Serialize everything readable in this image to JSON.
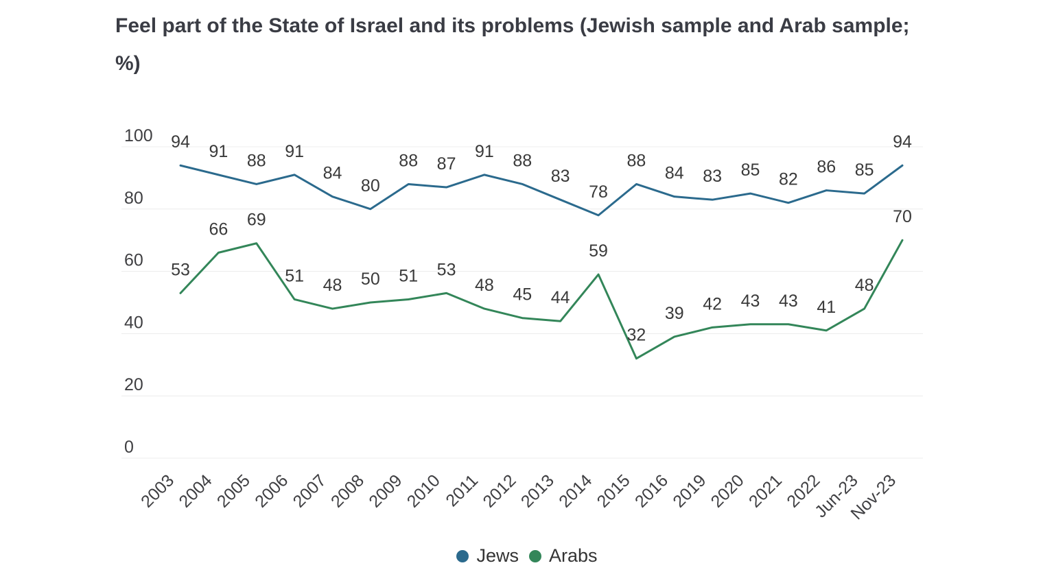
{
  "title": {
    "line1": "Feel part of the State of Israel and its problems (Jewish sample and Arab sample;",
    "line2": "%)"
  },
  "colors": {
    "jews_line": "#2b6a8d",
    "arabs_line": "#338659",
    "gridline": "#ececec",
    "tick_label": "#3f3f42",
    "data_label": "#3a3a3a",
    "title_text": "#3a3c44"
  },
  "chart_data": {
    "type": "line",
    "title": "Feel part of the State of Israel and its problems (Jewish sample and Arab sample; %)",
    "xlabel": "",
    "ylabel": "",
    "categories": [
      "2003",
      "2004",
      "2005",
      "2006",
      "2007",
      "2008",
      "2009",
      "2010",
      "2011",
      "2012",
      "2013",
      "2014",
      "2015",
      "2016",
      "2019",
      "2020",
      "2021",
      "2022",
      "Jun-23",
      "Nov-23"
    ],
    "series": [
      {
        "name": "Jews",
        "color": "#2b6a8d",
        "values": [
          94,
          91,
          88,
          91,
          84,
          80,
          88,
          87,
          91,
          88,
          83,
          78,
          88,
          84,
          83,
          85,
          82,
          86,
          85,
          94
        ]
      },
      {
        "name": "Arabs",
        "color": "#338659",
        "values": [
          53,
          66,
          69,
          51,
          48,
          50,
          51,
          53,
          48,
          45,
          44,
          59,
          32,
          39,
          42,
          43,
          43,
          41,
          48,
          70
        ]
      }
    ],
    "ylim": [
      0,
      100
    ],
    "yticks": [
      0,
      20,
      40,
      60,
      80,
      100
    ],
    "grid": true,
    "data_labels": true,
    "legend_position": "bottom",
    "x_tick_rotation": -45
  }
}
